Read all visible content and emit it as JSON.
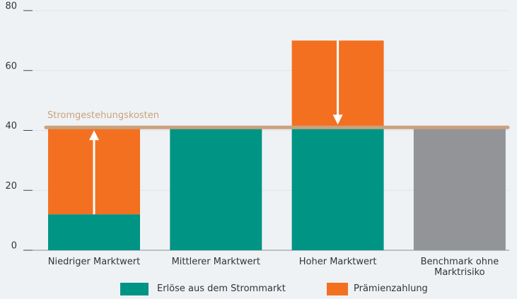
{
  "chart_data": {
    "type": "bar",
    "stacked": true,
    "categories": [
      "Niedriger Marktwert",
      "Mittlerer Marktwert",
      "Hoher Marktwert",
      "Benchmark ohne Marktrisiko"
    ],
    "series": [
      {
        "name": "Erlöse aus dem Strommarkt",
        "color": "#009485",
        "point_colors": [
          "#009485",
          "#009485",
          "#009485",
          "#929497"
        ],
        "values": [
          12,
          41,
          41,
          41
        ]
      },
      {
        "name": "Prämienzahlung",
        "color": "#f37021",
        "values": [
          29,
          null,
          29,
          null
        ]
      }
    ],
    "reference_line": {
      "label": "Stromgestehungskosten",
      "value": 41,
      "color": "#c9a27e"
    },
    "ylim": [
      0,
      80
    ],
    "yticks": [
      0,
      20,
      40,
      60,
      80
    ],
    "grid": true
  }
}
